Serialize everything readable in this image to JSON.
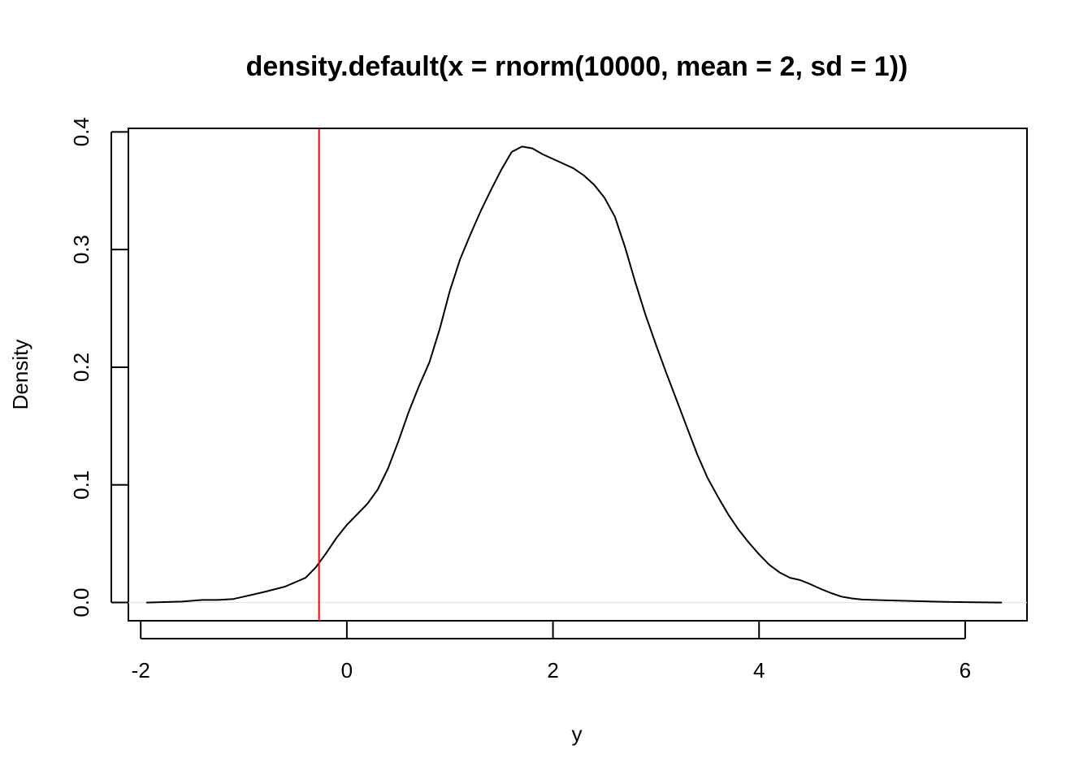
{
  "chart_data": {
    "type": "line",
    "title": "density.default(x = rnorm(10000, mean = 2, sd = 1))",
    "xlabel": "y",
    "ylabel": "Density",
    "xlim": [
      -2.12,
      6.6
    ],
    "ylim": [
      -0.0155,
      0.403
    ],
    "x_ticks": [
      -2,
      0,
      2,
      4,
      6
    ],
    "x_tick_labels": [
      "-2",
      "0",
      "2",
      "4",
      "6"
    ],
    "y_ticks": [
      0.0,
      0.1,
      0.2,
      0.3,
      0.4
    ],
    "y_tick_labels": [
      "0.0",
      "0.1",
      "0.2",
      "0.3",
      "0.4"
    ],
    "grid": false,
    "baseline": {
      "y": 0,
      "color": "#e6e6e6"
    },
    "series": [
      {
        "color": "#000000",
        "x": [
          -1.94,
          -1.6,
          -1.4,
          -1.25,
          -1.1,
          -1.0,
          -0.8,
          -0.6,
          -0.4,
          -0.3,
          -0.2,
          -0.1,
          0.0,
          0.1,
          0.2,
          0.3,
          0.4,
          0.5,
          0.6,
          0.7,
          0.8,
          0.9,
          1.0,
          1.1,
          1.2,
          1.3,
          1.4,
          1.5,
          1.6,
          1.7,
          1.8,
          1.9,
          2.0,
          2.1,
          2.2,
          2.3,
          2.4,
          2.5,
          2.6,
          2.7,
          2.8,
          2.9,
          3.0,
          3.1,
          3.2,
          3.3,
          3.4,
          3.5,
          3.6,
          3.7,
          3.8,
          3.9,
          4.0,
          4.1,
          4.2,
          4.3,
          4.4,
          4.5,
          4.6,
          4.7,
          4.8,
          4.9,
          5.0,
          5.2,
          5.5,
          5.8,
          6.0,
          6.35
        ],
        "y": [
          0.0,
          0.0008,
          0.0022,
          0.0022,
          0.003,
          0.005,
          0.009,
          0.0135,
          0.021,
          0.03,
          0.042,
          0.055,
          0.066,
          0.075,
          0.084,
          0.096,
          0.114,
          0.137,
          0.162,
          0.184,
          0.204,
          0.232,
          0.265,
          0.292,
          0.313,
          0.333,
          0.351,
          0.368,
          0.383,
          0.3875,
          0.386,
          0.381,
          0.377,
          0.373,
          0.369,
          0.363,
          0.355,
          0.344,
          0.328,
          0.302,
          0.272,
          0.244,
          0.219,
          0.195,
          0.172,
          0.149,
          0.126,
          0.106,
          0.09,
          0.075,
          0.062,
          0.051,
          0.041,
          0.032,
          0.0255,
          0.021,
          0.019,
          0.0155,
          0.0115,
          0.008,
          0.005,
          0.0035,
          0.0025,
          0.002,
          0.0012,
          0.0006,
          0.0003,
          0.0
        ]
      }
    ],
    "annotations": [
      {
        "type": "vline",
        "x": -0.27,
        "color": "#ff0000"
      }
    ]
  }
}
